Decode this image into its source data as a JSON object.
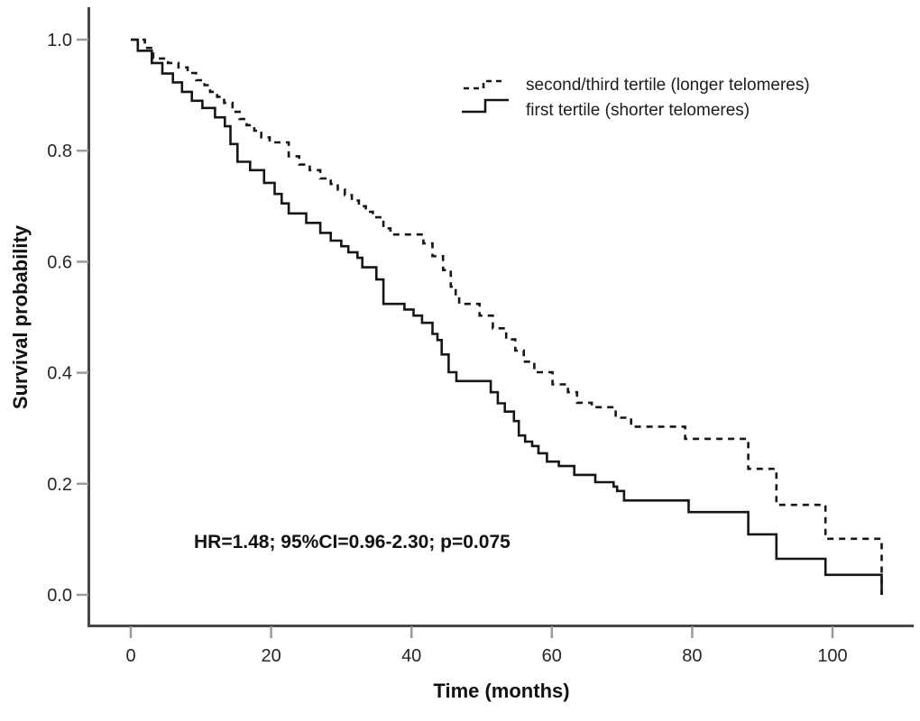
{
  "figure": {
    "background": "#ffffff",
    "curve_color": "#161616",
    "axis_color": "#474747",
    "legend": {
      "items": [
        {
          "label": "second/third tertile (longer telomeres)",
          "style": "dashed"
        },
        {
          "label": "first tertile (shorter telomeres)",
          "style": "solid"
        }
      ]
    }
  },
  "chart_data": {
    "type": "line",
    "subtype": "kaplan-meier-step-survival",
    "title": "",
    "xlabel": "Time (months)",
    "ylabel": "Survival probability",
    "xlim": [
      -6,
      112
    ],
    "ylim": [
      0.0,
      1.05
    ],
    "x_ticks": [
      0,
      20,
      40,
      60,
      80,
      100
    ],
    "y_ticks": [
      0.0,
      0.2,
      0.4,
      0.6,
      0.8,
      1.0
    ],
    "grid": false,
    "legend_position": "upper right inside",
    "annotation": "HR=1.48; 95%CI=0.96-2.30; p=0.075",
    "series": [
      {
        "name": "second/third tertile (longer telomeres)",
        "line": "dashed",
        "points": [
          [
            0,
            1.0
          ],
          [
            2,
            0.985
          ],
          [
            3.2,
            0.966
          ],
          [
            5.3,
            0.958
          ],
          [
            6.8,
            0.95
          ],
          [
            8.1,
            0.94
          ],
          [
            9.3,
            0.927
          ],
          [
            10.5,
            0.918
          ],
          [
            11.3,
            0.906
          ],
          [
            12.3,
            0.897
          ],
          [
            13.3,
            0.886
          ],
          [
            14.5,
            0.87
          ],
          [
            15.5,
            0.857
          ],
          [
            16.5,
            0.846
          ],
          [
            17.6,
            0.836
          ],
          [
            18.6,
            0.824
          ],
          [
            19.8,
            0.815
          ],
          [
            22.5,
            0.79
          ],
          [
            24,
            0.775
          ],
          [
            25.5,
            0.765
          ],
          [
            27,
            0.75
          ],
          [
            28.5,
            0.74
          ],
          [
            29.5,
            0.73
          ],
          [
            30.5,
            0.72
          ],
          [
            31.5,
            0.71
          ],
          [
            32.5,
            0.7
          ],
          [
            33.5,
            0.69
          ],
          [
            34.5,
            0.68
          ],
          [
            36,
            0.66
          ],
          [
            37,
            0.649
          ],
          [
            41.7,
            0.633
          ],
          [
            43,
            0.61
          ],
          [
            44.5,
            0.585
          ],
          [
            45.6,
            0.555
          ],
          [
            46.3,
            0.536
          ],
          [
            46.8,
            0.524
          ],
          [
            49.7,
            0.503
          ],
          [
            51.6,
            0.48
          ],
          [
            53.5,
            0.46
          ],
          [
            54.8,
            0.44
          ],
          [
            56,
            0.42
          ],
          [
            57.5,
            0.401
          ],
          [
            60.1,
            0.379
          ],
          [
            62.3,
            0.365
          ],
          [
            63.6,
            0.346
          ],
          [
            65.7,
            0.338
          ],
          [
            69.1,
            0.319
          ],
          [
            71.3,
            0.303
          ],
          [
            79,
            0.281
          ],
          [
            88,
            0.227
          ],
          [
            92,
            0.162
          ],
          [
            99,
            0.101
          ],
          [
            107,
            0.0
          ]
        ]
      },
      {
        "name": "first tertile (shorter telomeres)",
        "line": "solid",
        "points": [
          [
            0,
            1.0
          ],
          [
            1,
            0.98
          ],
          [
            3,
            0.958
          ],
          [
            4.5,
            0.939
          ],
          [
            6,
            0.923
          ],
          [
            7.3,
            0.906
          ],
          [
            8.7,
            0.89
          ],
          [
            10.2,
            0.877
          ],
          [
            12,
            0.86
          ],
          [
            13.4,
            0.844
          ],
          [
            14.2,
            0.812
          ],
          [
            15.2,
            0.78
          ],
          [
            17,
            0.765
          ],
          [
            19,
            0.742
          ],
          [
            20.5,
            0.722
          ],
          [
            21.5,
            0.705
          ],
          [
            22.5,
            0.687
          ],
          [
            25,
            0.67
          ],
          [
            27,
            0.652
          ],
          [
            28.5,
            0.638
          ],
          [
            30,
            0.628
          ],
          [
            31,
            0.617
          ],
          [
            32.3,
            0.607
          ],
          [
            33,
            0.59
          ],
          [
            35,
            0.568
          ],
          [
            36,
            0.524
          ],
          [
            39,
            0.514
          ],
          [
            40.3,
            0.503
          ],
          [
            41.5,
            0.49
          ],
          [
            43,
            0.47
          ],
          [
            43.7,
            0.459
          ],
          [
            44.3,
            0.433
          ],
          [
            45.3,
            0.401
          ],
          [
            46.4,
            0.385
          ],
          [
            51.3,
            0.365
          ],
          [
            52.3,
            0.345
          ],
          [
            53.3,
            0.33
          ],
          [
            54.6,
            0.313
          ],
          [
            55.3,
            0.287
          ],
          [
            56.2,
            0.276
          ],
          [
            57.2,
            0.268
          ],
          [
            58.1,
            0.255
          ],
          [
            59.3,
            0.24
          ],
          [
            61,
            0.232
          ],
          [
            63.2,
            0.216
          ],
          [
            66.2,
            0.203
          ],
          [
            68.8,
            0.195
          ],
          [
            69.3,
            0.187
          ],
          [
            70.3,
            0.17
          ],
          [
            79.5,
            0.149
          ],
          [
            88,
            0.109
          ],
          [
            92,
            0.065
          ],
          [
            99,
            0.036
          ],
          [
            107,
            0.0
          ]
        ]
      }
    ]
  }
}
